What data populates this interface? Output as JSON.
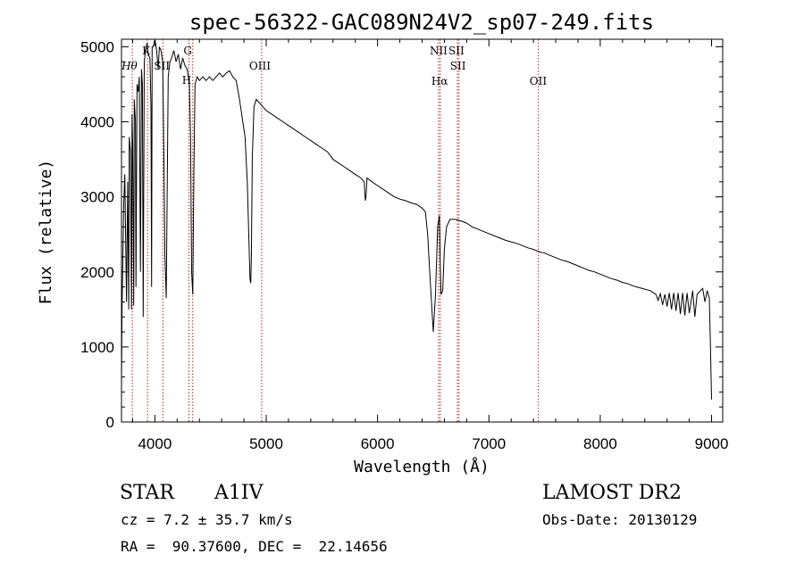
{
  "chart_data": {
    "type": "line",
    "title": "spec-56322-GAC089N24V2_sp07-249.fits",
    "xlabel": "Wavelength (Å)",
    "ylabel": "Flux (relative)",
    "xlim": [
      3700,
      9100
    ],
    "ylim": [
      0,
      5100
    ],
    "xticks": [
      4000,
      5000,
      6000,
      7000,
      8000,
      9000
    ],
    "yticks": [
      0,
      1000,
      2000,
      3000,
      4000,
      5000
    ],
    "grid": false,
    "line_color": "#000000",
    "series": [
      {
        "x": [
          3700,
          3705,
          3720,
          3730,
          3745,
          3755,
          3765,
          3770,
          3780,
          3790,
          3795,
          3800,
          3810,
          3815,
          3825,
          3830,
          3840,
          3850,
          3860,
          3870,
          3880,
          3888,
          3895,
          3905,
          3915,
          3930,
          3940,
          3955,
          3965,
          3970,
          3975,
          3985,
          4000,
          4015,
          4030,
          4040,
          4055,
          4070,
          4080,
          4090,
          4102,
          4110,
          4120,
          4135,
          4150,
          4170,
          4190,
          4210,
          4230,
          4250,
          4270,
          4290,
          4310,
          4320,
          4330,
          4340,
          4350,
          4360,
          4380,
          4400,
          4430,
          4460,
          4490,
          4520,
          4550,
          4580,
          4610,
          4640,
          4670,
          4700,
          4730,
          4760,
          4790,
          4810,
          4830,
          4845,
          4855,
          4861,
          4867,
          4875,
          4890,
          4910,
          4940,
          4970,
          5000,
          5050,
          5100,
          5150,
          5200,
          5250,
          5300,
          5350,
          5400,
          5450,
          5500,
          5550,
          5600,
          5650,
          5700,
          5750,
          5800,
          5850,
          5880,
          5890,
          5896,
          5905,
          5950,
          6000,
          6050,
          6100,
          6150,
          6200,
          6250,
          6300,
          6350,
          6400,
          6430,
          6450,
          6480,
          6500,
          6520,
          6540,
          6555,
          6563,
          6570,
          6585,
          6600,
          6620,
          6650,
          6700,
          6750,
          6800,
          6850,
          6900,
          6950,
          7000,
          7050,
          7100,
          7150,
          7200,
          7250,
          7300,
          7350,
          7400,
          7450,
          7500,
          7550,
          7600,
          7650,
          7700,
          7750,
          7800,
          7850,
          7900,
          7950,
          8000,
          8050,
          8100,
          8150,
          8200,
          8250,
          8300,
          8350,
          8400,
          8450,
          8480,
          8500,
          8520,
          8540,
          8560,
          8580,
          8600,
          8620,
          8640,
          8660,
          8680,
          8700,
          8720,
          8740,
          8760,
          8780,
          8800,
          8830,
          8850,
          8870,
          8900,
          8920,
          8940,
          8960,
          8980,
          8990,
          9000
        ],
        "y": [
          500,
          1500,
          2900,
          3300,
          1600,
          3200,
          1500,
          3800,
          3600,
          1500,
          4100,
          3700,
          1550,
          4300,
          4000,
          1800,
          4500,
          4400,
          4600,
          2000,
          4700,
          4500,
          1400,
          4800,
          4950,
          5050,
          4900,
          4850,
          4200,
          1800,
          5000,
          5000,
          5100,
          4950,
          4700,
          5000,
          4950,
          4800,
          3600,
          2200,
          1650,
          3000,
          4600,
          4800,
          4850,
          4950,
          4800,
          4900,
          4700,
          4850,
          4750,
          4700,
          4500,
          3800,
          2000,
          1700,
          3300,
          4500,
          4600,
          4550,
          4600,
          4550,
          4600,
          4550,
          4600,
          4650,
          4600,
          4650,
          4680,
          4600,
          4550,
          4300,
          4000,
          3800,
          3200,
          2400,
          1900,
          1850,
          2200,
          3500,
          4200,
          4300,
          4250,
          4200,
          4150,
          4100,
          4050,
          4000,
          3950,
          3900,
          3850,
          3800,
          3750,
          3700,
          3650,
          3600,
          3500,
          3450,
          3400,
          3350,
          3300,
          3250,
          3200,
          2950,
          3000,
          3250,
          3200,
          3150,
          3100,
          3050,
          3000,
          2970,
          2950,
          2920,
          2900,
          2850,
          2800,
          2500,
          1700,
          1200,
          1700,
          2600,
          2750,
          2100,
          1700,
          1750,
          2300,
          2600,
          2700,
          2700,
          2680,
          2650,
          2600,
          2570,
          2540,
          2510,
          2480,
          2450,
          2420,
          2400,
          2380,
          2350,
          2320,
          2300,
          2270,
          2250,
          2220,
          2190,
          2160,
          2140,
          2110,
          2080,
          2050,
          2020,
          2000,
          1970,
          1940,
          1910,
          1890,
          1860,
          1840,
          1810,
          1790,
          1770,
          1750,
          1720,
          1700,
          1620,
          1710,
          1560,
          1700,
          1540,
          1720,
          1500,
          1720,
          1480,
          1720,
          1440,
          1720,
          1420,
          1720,
          1450,
          1750,
          1400,
          1700,
          1750,
          1780,
          1600,
          1750,
          1650,
          1000,
          300
        ]
      }
    ],
    "lines": [
      {
        "label": "Hθ",
        "x": 3797,
        "style": "italic"
      },
      {
        "label": "K",
        "x": 3934,
        "style": "normal"
      },
      {
        "label": "SII",
        "x": 4072,
        "style": "normal"
      },
      {
        "label": "G",
        "x": 4305,
        "style": "normal"
      },
      {
        "label": "H",
        "x": 4340,
        "style": "normal"
      },
      {
        "label": "OIII",
        "x": 4959,
        "style": "normal"
      },
      {
        "label": "NII",
        "x": 6548,
        "style": "normal"
      },
      {
        "label": "Hα",
        "x": 6563,
        "style": "normal"
      },
      {
        "label": "SII",
        "x": 6717,
        "style": "normal"
      },
      {
        "label": "SII",
        "x": 6731,
        "style": "normal"
      },
      {
        "label": "OII",
        "x": 7445,
        "style": "normal"
      }
    ],
    "line_color_marker": "#b22222"
  },
  "info": {
    "class_label": "STAR",
    "subclass": "A1IV",
    "redshift_text": "cz = 7.2 ± 35.7 km/s",
    "coords_text": "RA =  90.37600, DEC =  22.14656",
    "survey": "LAMOST DR2",
    "obs_date": "Obs-Date: 20130129"
  }
}
